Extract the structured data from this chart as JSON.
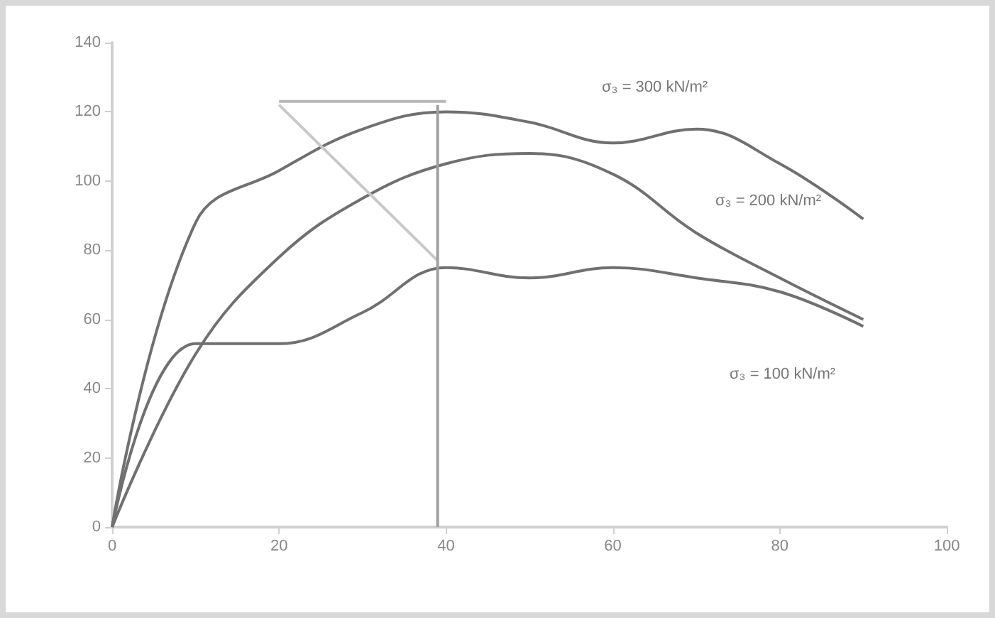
{
  "chart_data": {
    "type": "line",
    "xlim": [
      0,
      100
    ],
    "xticks": [
      0,
      20,
      40,
      60,
      80,
      100
    ],
    "ylim": [
      0,
      140
    ],
    "yticks": [
      0,
      20,
      40,
      60,
      80,
      100,
      120,
      140
    ],
    "grid": false,
    "marker": "none",
    "line_style": "solid",
    "series": [
      {
        "color": "#707070",
        "x": [
          0,
          10,
          20,
          30,
          40,
          50,
          60,
          70,
          80,
          90
        ],
        "values": [
          0,
          88,
          103,
          115,
          120,
          117,
          111,
          115,
          105,
          89
        ]
      },
      {
        "color": "#707070",
        "x": [
          0,
          10,
          20,
          30,
          40,
          50,
          60,
          70,
          80,
          90
        ],
        "values": [
          0,
          50,
          78,
          95,
          105,
          108,
          102,
          85,
          72,
          60
        ]
      },
      {
        "color": "#707070",
        "x": [
          0,
          10,
          20,
          30,
          40,
          50,
          60,
          70,
          80,
          90
        ],
        "values": [
          0,
          53,
          53,
          62,
          75,
          72,
          75,
          72,
          68,
          58
        ]
      },
      {
        "color": "#b8b8b8",
        "x": [
          20,
          40
        ],
        "values": [
          123,
          123
        ]
      },
      {
        "color": "#c8c8c8",
        "x": [
          20,
          39
        ],
        "values": [
          122,
          77
        ]
      },
      {
        "color": "#a0a0a0",
        "x": [
          39,
          39
        ],
        "values": [
          122,
          0
        ]
      }
    ],
    "annotations": [
      "σ₃ = 300 kN/m²",
      "σ₃ = 200 kN/m²",
      "σ₃ = 100 kN/m²"
    ]
  }
}
